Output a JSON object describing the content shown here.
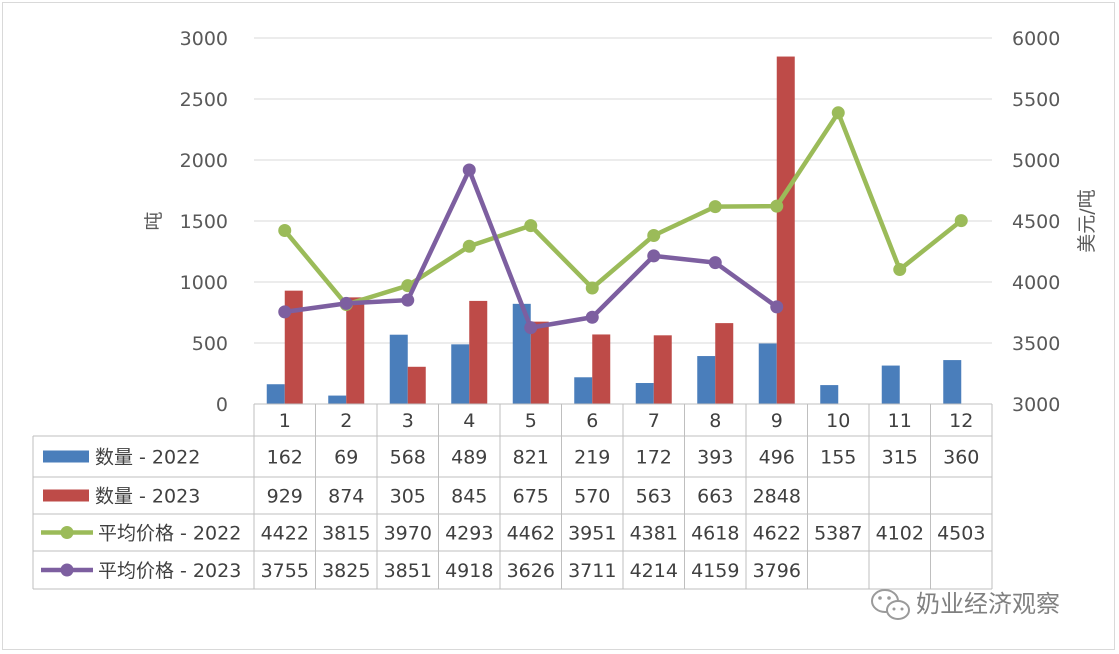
{
  "chart_data": {
    "type": "bar",
    "categories": [
      "1",
      "2",
      "3",
      "4",
      "5",
      "6",
      "7",
      "8",
      "9",
      "10",
      "11",
      "12"
    ],
    "ylabel": "吨",
    "y2label": "美元/吨",
    "ylim": [
      0,
      3000
    ],
    "y2lim": [
      3000,
      6000
    ],
    "y_ticks": [
      "0",
      "500",
      "1000",
      "1500",
      "2000",
      "2500",
      "3000"
    ],
    "y2_ticks": [
      "3000",
      "3500",
      "4000",
      "4500",
      "5000",
      "5500",
      "6000"
    ],
    "grid": true,
    "legend": "data-table",
    "series": [
      {
        "name": "数量 - 2022",
        "type": "bar",
        "axis": "left",
        "color": "#4a7ebb",
        "values": [
          162,
          69,
          568,
          489,
          821,
          219,
          172,
          393,
          496,
          155,
          315,
          360
        ]
      },
      {
        "name": "数量 - 2023",
        "type": "bar",
        "axis": "left",
        "color": "#be4b48",
        "values": [
          929,
          874,
          305,
          845,
          675,
          570,
          563,
          663,
          2848,
          null,
          null,
          null
        ]
      },
      {
        "name": "平均价格 - 2022",
        "type": "line",
        "axis": "right",
        "color": "#9bbb59",
        "values": [
          4422,
          3815,
          3970,
          4293,
          4462,
          3951,
          4381,
          4618,
          4622,
          5387,
          4102,
          4503
        ]
      },
      {
        "name": "平均价格 - 2023",
        "type": "line",
        "axis": "right",
        "color": "#7d5fa0",
        "values": [
          3755,
          3825,
          3851,
          4918,
          3626,
          3711,
          4214,
          4159,
          3796,
          null,
          null,
          null
        ]
      }
    ]
  },
  "watermark": "奶业经济观察",
  "watermark_icon": "wechat-icon"
}
